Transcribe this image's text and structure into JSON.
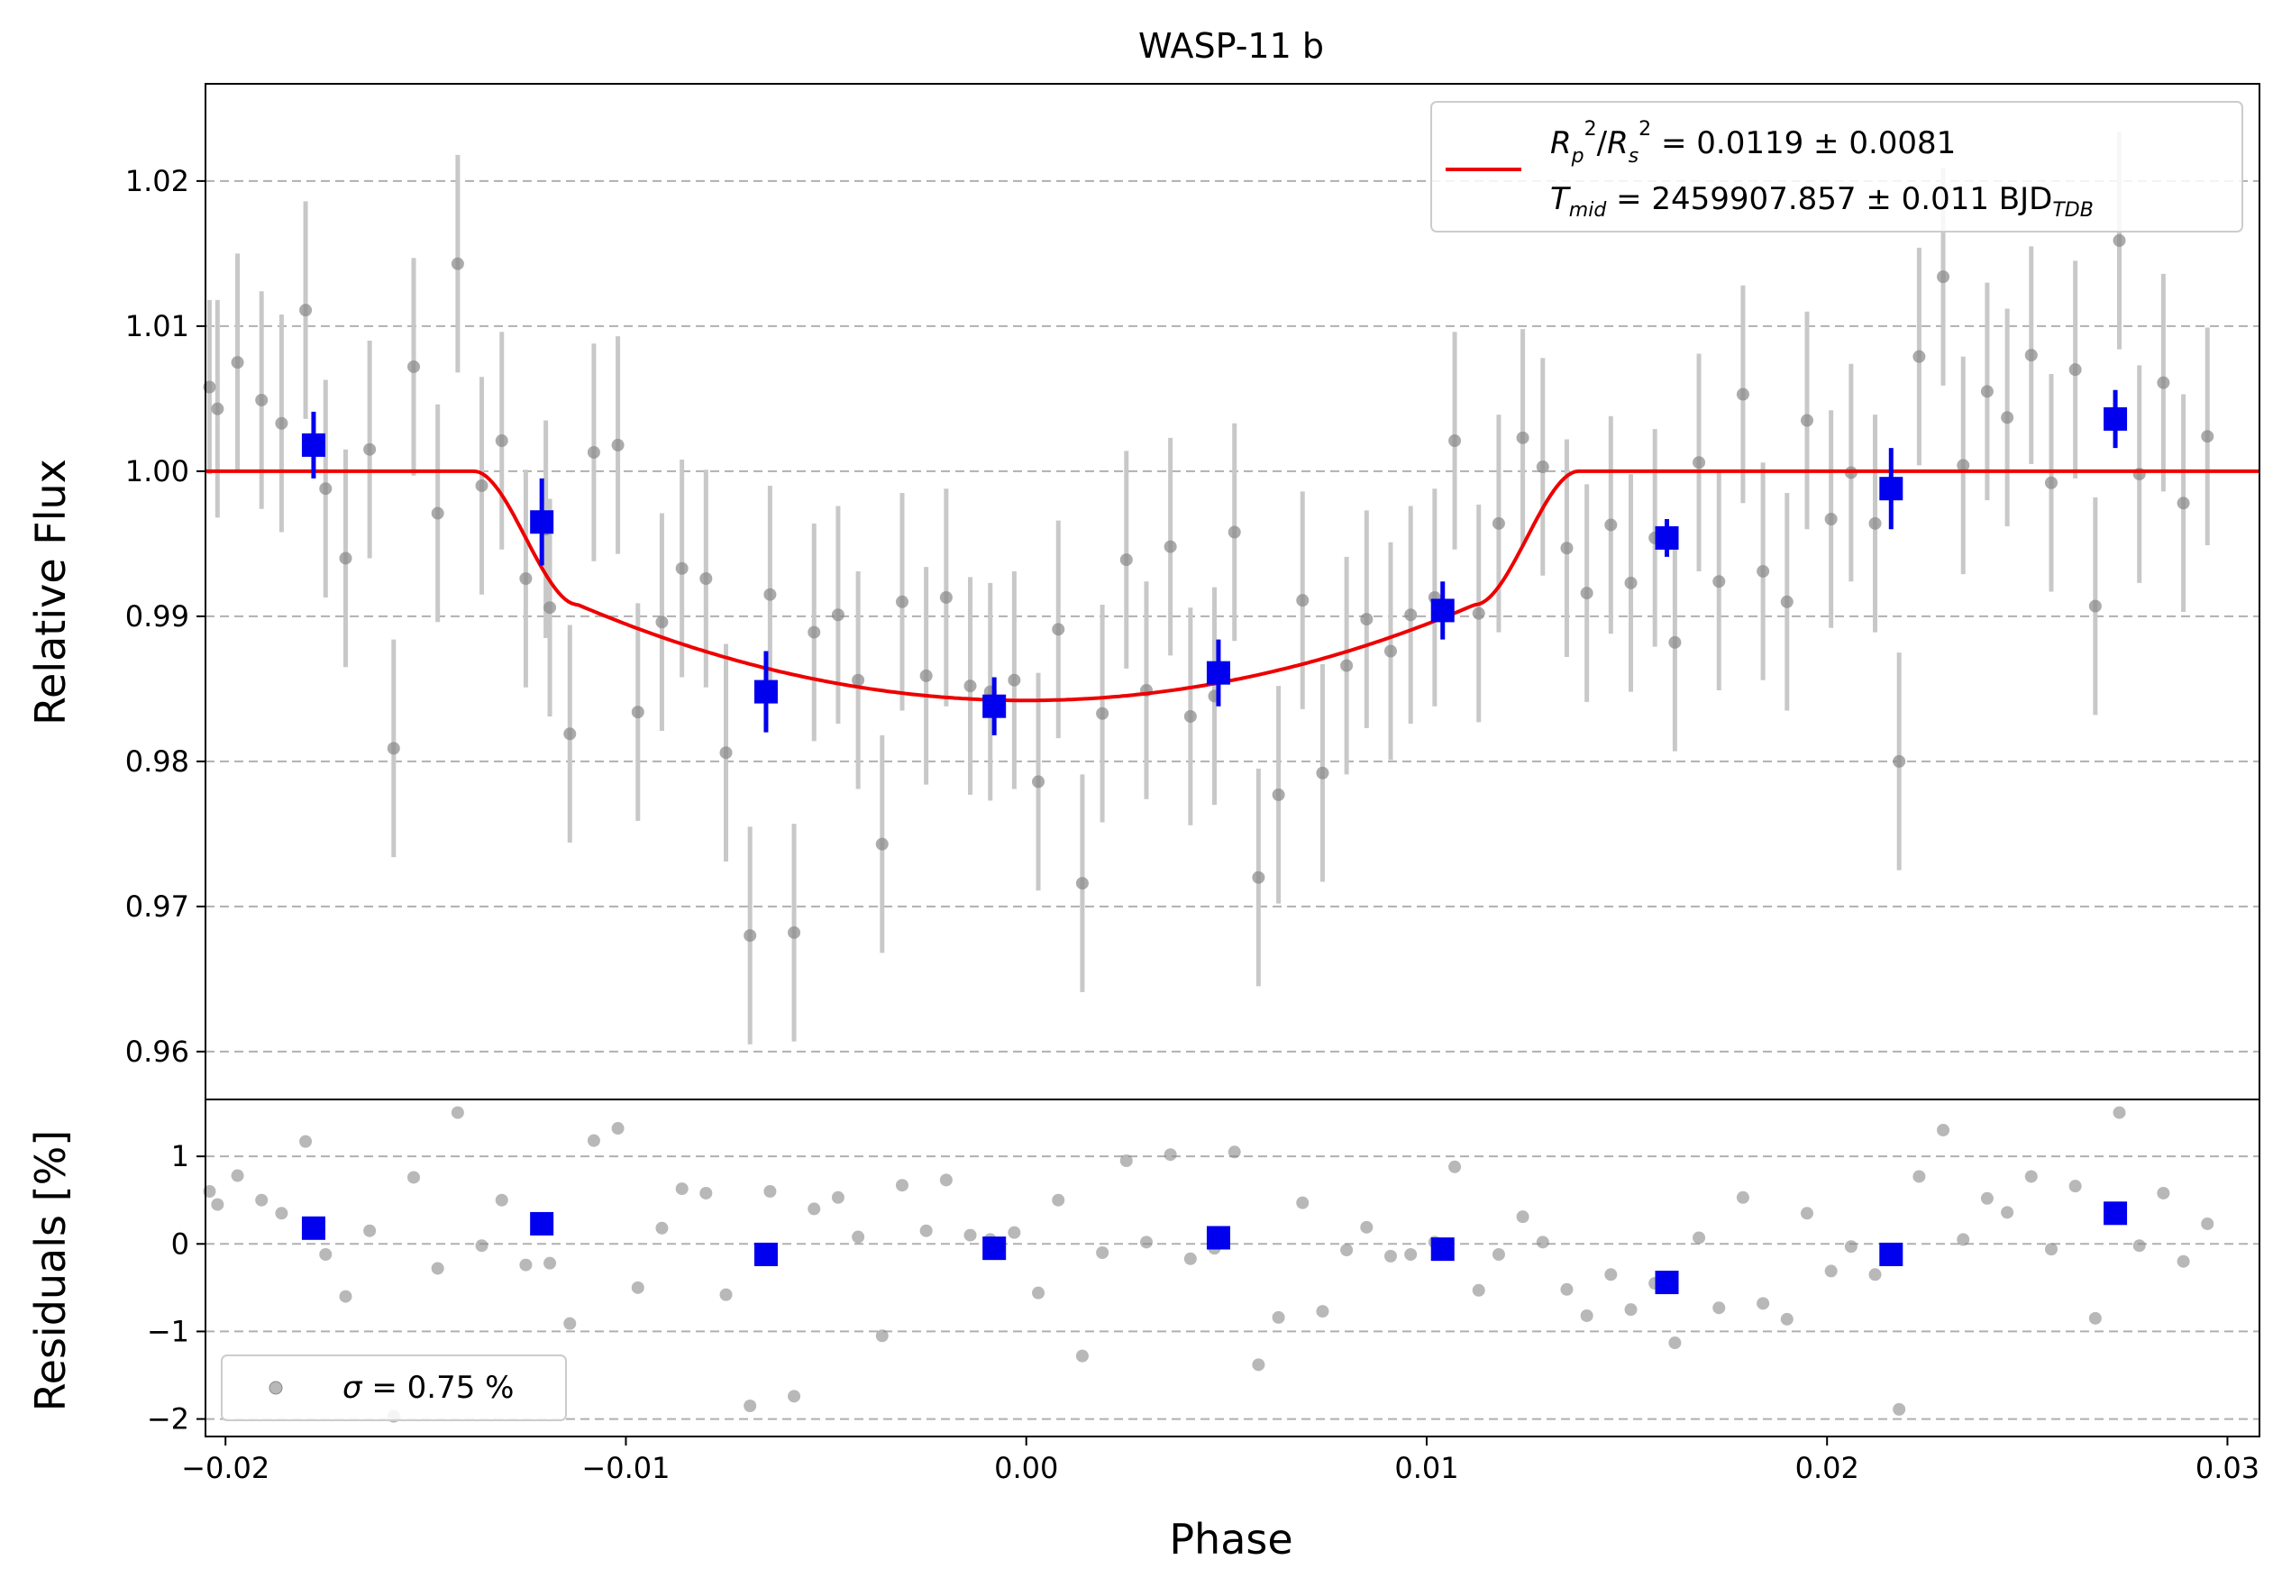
{
  "chart_data": [
    {
      "type": "scatter",
      "title": "WASP-11 b",
      "xlabel": "",
      "ylabel": "Relative Flux",
      "xlim": [
        -0.0205,
        0.0308
      ],
      "ylim": [
        0.9567,
        1.0267
      ],
      "y_ticks": [
        0.96,
        0.97,
        0.98,
        0.99,
        1.0,
        1.01,
        1.02
      ],
      "y_tick_labels": [
        "0.96",
        "0.97",
        "0.98",
        "0.99",
        "1.00",
        "1.01",
        "1.02"
      ],
      "grid": "horizontal dashed",
      "legend_placement": "top-right",
      "legend": {
        "line1": {
          "rp": "R",
          "rp_sub": "p",
          "sup1": "2",
          "slash": "/",
          "rs": "R",
          "rs_sub": "s",
          "sup2": "2",
          "value": " = 0.0119 ± 0.0081"
        },
        "line2": {
          "t": "T",
          "t_sub": "mid",
          "value": " = 2459907.857 ± 0.011 BJD",
          "unit_sub": "TDB"
        }
      },
      "colors": {
        "raw": "#888888",
        "raw_err": "#c8c8c8",
        "binned": "#0000ee",
        "model": "#ee0000",
        "grid": "#b0b0b0"
      },
      "model": {
        "depth": 0.0158,
        "t1": -0.0138,
        "t2": -0.0112,
        "t3": 0.0112,
        "t4": 0.0138,
        "baseline": 1.0
      },
      "raw_points": [
        [
          -0.0204,
          1.0058,
          0.006
        ],
        [
          -0.0202,
          1.0043,
          0.0075
        ],
        [
          -0.0197,
          1.0075,
          0.0075
        ],
        [
          -0.0191,
          1.0049,
          0.0075
        ],
        [
          -0.0186,
          1.0033,
          0.0075
        ],
        [
          -0.018,
          1.0111,
          0.0075
        ],
        [
          -0.0175,
          0.9988,
          0.0075
        ],
        [
          -0.017,
          0.994,
          0.0075
        ],
        [
          -0.0164,
          1.0015,
          0.0075
        ],
        [
          -0.0158,
          0.9809,
          0.0075
        ],
        [
          -0.0153,
          1.0072,
          0.0075
        ],
        [
          -0.0147,
          0.9971,
          0.0075
        ],
        [
          -0.0142,
          1.0143,
          0.0075
        ],
        [
          -0.0136,
          0.999,
          0.0075
        ],
        [
          -0.0131,
          1.0021,
          0.0075
        ],
        [
          -0.0125,
          0.9926,
          0.0075
        ],
        [
          -0.012,
          0.996,
          0.0075
        ],
        [
          -0.0119,
          0.9906,
          0.0075
        ],
        [
          -0.0114,
          0.9819,
          0.0075
        ],
        [
          -0.0108,
          1.0013,
          0.0075
        ],
        [
          -0.0102,
          1.0018,
          0.0075
        ],
        [
          -0.0097,
          0.9834,
          0.0075
        ],
        [
          -0.0091,
          0.9896,
          0.0075
        ],
        [
          -0.0086,
          0.9933,
          0.0075
        ],
        [
          -0.008,
          0.9926,
          0.0075
        ],
        [
          -0.0075,
          0.9806,
          0.0075
        ],
        [
          -0.0069,
          0.968,
          0.0075
        ],
        [
          -0.0064,
          0.9915,
          0.0075
        ],
        [
          -0.0058,
          0.9682,
          0.0075
        ],
        [
          -0.0053,
          0.9889,
          0.0075
        ],
        [
          -0.0047,
          0.9901,
          0.0075
        ],
        [
          -0.0042,
          0.9856,
          0.0075
        ],
        [
          -0.0036,
          0.9743,
          0.0075
        ],
        [
          -0.0031,
          0.991,
          0.0075
        ],
        [
          -0.0025,
          0.9859,
          0.0075
        ],
        [
          -0.002,
          0.9913,
          0.0075
        ],
        [
          -0.0014,
          0.9852,
          0.0075
        ],
        [
          -0.0009,
          0.9848,
          0.0075
        ],
        [
          -0.0003,
          0.9856,
          0.0075
        ],
        [
          0.0003,
          0.9786,
          0.0075
        ],
        [
          0.0008,
          0.9891,
          0.0075
        ],
        [
          0.0014,
          0.9716,
          0.0075
        ],
        [
          0.0019,
          0.9833,
          0.0075
        ],
        [
          0.0025,
          0.9939,
          0.0075
        ],
        [
          0.003,
          0.9849,
          0.0075
        ],
        [
          0.0036,
          0.9948,
          0.0075
        ],
        [
          0.0041,
          0.9831,
          0.0075
        ],
        [
          0.0047,
          0.9845,
          0.0075
        ],
        [
          0.0052,
          0.9958,
          0.0075
        ],
        [
          0.0058,
          0.972,
          0.0075
        ],
        [
          0.0063,
          0.9777,
          0.0075
        ],
        [
          0.0069,
          0.9911,
          0.0075
        ],
        [
          0.0074,
          0.9792,
          0.0075
        ],
        [
          0.008,
          0.9866,
          0.0075
        ],
        [
          0.0085,
          0.9898,
          0.0075
        ],
        [
          0.0091,
          0.9876,
          0.0075
        ],
        [
          0.0096,
          0.9901,
          0.0075
        ],
        [
          0.0102,
          0.9913,
          0.0075
        ],
        [
          0.0107,
          1.0021,
          0.0075
        ],
        [
          0.0113,
          0.9902,
          0.0075
        ],
        [
          0.0118,
          0.9964,
          0.0075
        ],
        [
          0.0124,
          1.0023,
          0.0075
        ],
        [
          0.0129,
          1.0003,
          0.0075
        ],
        [
          0.0135,
          0.9947,
          0.0075
        ],
        [
          0.014,
          0.9916,
          0.0075
        ],
        [
          0.0146,
          0.9963,
          0.0075
        ],
        [
          0.0151,
          0.9923,
          0.0075
        ],
        [
          0.0157,
          0.9954,
          0.0075
        ],
        [
          0.0162,
          0.9882,
          0.0075
        ],
        [
          0.0168,
          1.0006,
          0.0075
        ],
        [
          0.0173,
          0.9924,
          0.0075
        ],
        [
          0.0179,
          1.0053,
          0.0075
        ],
        [
          0.0184,
          0.9931,
          0.0075
        ],
        [
          0.019,
          0.991,
          0.0075
        ],
        [
          0.0195,
          1.0035,
          0.0075
        ],
        [
          0.0201,
          0.9967,
          0.0075
        ],
        [
          0.0206,
          0.9999,
          0.0075
        ],
        [
          0.0212,
          0.9964,
          0.0075
        ],
        [
          0.0218,
          0.98,
          0.0075
        ],
        [
          0.0223,
          1.0079,
          0.0075
        ],
        [
          0.0229,
          1.0134,
          0.0075
        ],
        [
          0.0234,
          1.0004,
          0.0075
        ],
        [
          0.024,
          1.0055,
          0.0075
        ],
        [
          0.0245,
          1.0037,
          0.0075
        ],
        [
          0.0251,
          1.008,
          0.0075
        ],
        [
          0.0256,
          0.9992,
          0.0075
        ],
        [
          0.0262,
          1.007,
          0.0075
        ],
        [
          0.0267,
          0.9907,
          0.0075
        ],
        [
          0.0273,
          1.0159,
          0.0075
        ],
        [
          0.0278,
          0.9998,
          0.0075
        ],
        [
          0.0284,
          1.0061,
          0.0075
        ],
        [
          0.0289,
          0.9978,
          0.0075
        ],
        [
          0.0295,
          1.0024,
          0.0075
        ]
      ],
      "binned_points": [
        [
          -0.0178,
          1.0018,
          0.0023
        ],
        [
          -0.0121,
          0.9965,
          0.003
        ],
        [
          -0.0065,
          0.9848,
          0.0028
        ],
        [
          -0.0008,
          0.9838,
          0.002
        ],
        [
          0.0048,
          0.9861,
          0.0023
        ],
        [
          0.0104,
          0.9904,
          0.002
        ],
        [
          0.016,
          0.9954,
          0.0013
        ],
        [
          0.0216,
          0.9988,
          0.0028
        ],
        [
          0.0272,
          1.0036,
          0.002
        ]
      ]
    },
    {
      "type": "scatter",
      "xlabel": "Phase",
      "ylabel": "Residuals [%]",
      "xlim": [
        -0.0205,
        0.0308
      ],
      "ylim": [
        -2.2,
        1.65
      ],
      "x_ticks": [
        -0.02,
        -0.01,
        0.0,
        0.01,
        0.02,
        0.03
      ],
      "x_tick_labels": [
        "−0.02",
        "−0.01",
        "0.00",
        "0.01",
        "0.02",
        "0.03"
      ],
      "y_ticks": [
        -2,
        -1,
        0,
        1
      ],
      "y_tick_labels": [
        "−2",
        "−1",
        "0",
        "1"
      ],
      "grid": "horizontal dashed",
      "legend_placement": "bottom-left",
      "legend": {
        "sigma": "σ",
        "value": " = 0.75 %"
      },
      "residual_points": [
        [
          -0.0204,
          0.6
        ],
        [
          -0.0202,
          0.45
        ],
        [
          -0.0197,
          0.78
        ],
        [
          -0.0191,
          0.5
        ],
        [
          -0.0186,
          0.35
        ],
        [
          -0.018,
          1.17
        ],
        [
          -0.0175,
          -0.12
        ],
        [
          -0.017,
          -0.6
        ],
        [
          -0.0164,
          0.15
        ],
        [
          -0.0158,
          -1.97
        ],
        [
          -0.0153,
          0.76
        ],
        [
          -0.0147,
          -0.28
        ],
        [
          -0.0142,
          1.5
        ],
        [
          -0.0136,
          -0.02
        ],
        [
          -0.0131,
          0.5
        ],
        [
          -0.0125,
          -0.24
        ],
        [
          -0.012,
          0.28
        ],
        [
          -0.0119,
          -0.22
        ],
        [
          -0.0114,
          -0.91
        ],
        [
          -0.0108,
          1.18
        ],
        [
          -0.0102,
          1.32
        ],
        [
          -0.0097,
          -0.5
        ],
        [
          -0.0091,
          0.18
        ],
        [
          -0.0086,
          0.63
        ],
        [
          -0.008,
          0.58
        ],
        [
          -0.0075,
          -0.58
        ],
        [
          -0.0069,
          -1.85
        ],
        [
          -0.0064,
          0.6
        ],
        [
          -0.0058,
          -1.74
        ],
        [
          -0.0053,
          0.4
        ],
        [
          -0.0047,
          0.53
        ],
        [
          -0.0042,
          0.08
        ],
        [
          -0.0036,
          -1.05
        ],
        [
          -0.0031,
          0.67
        ],
        [
          -0.0025,
          0.15
        ],
        [
          -0.002,
          0.73
        ],
        [
          -0.0014,
          0.1
        ],
        [
          -0.0009,
          0.05
        ],
        [
          -0.0003,
          0.13
        ],
        [
          0.0003,
          -0.56
        ],
        [
          0.0008,
          0.5
        ],
        [
          0.0014,
          -1.28
        ],
        [
          0.0019,
          -0.1
        ],
        [
          0.0025,
          0.95
        ],
        [
          0.003,
          0.02
        ],
        [
          0.0036,
          1.02
        ],
        [
          0.0041,
          -0.17
        ],
        [
          0.0047,
          -0.05
        ],
        [
          0.0052,
          1.05
        ],
        [
          0.0058,
          -1.38
        ],
        [
          0.0063,
          -0.84
        ],
        [
          0.0069,
          0.47
        ],
        [
          0.0074,
          -0.77
        ],
        [
          0.008,
          -0.07
        ],
        [
          0.0085,
          0.19
        ],
        [
          0.0091,
          -0.14
        ],
        [
          0.0096,
          -0.12
        ],
        [
          0.0102,
          0.02
        ],
        [
          0.0107,
          0.88
        ],
        [
          0.0113,
          -0.53
        ],
        [
          0.0118,
          -0.12
        ],
        [
          0.0124,
          0.31
        ],
        [
          0.0129,
          0.02
        ],
        [
          0.0135,
          -0.52
        ],
        [
          0.014,
          -0.82
        ],
        [
          0.0146,
          -0.35
        ],
        [
          0.0151,
          -0.75
        ],
        [
          0.0157,
          -0.45
        ],
        [
          0.0162,
          -1.13
        ],
        [
          0.0168,
          0.07
        ],
        [
          0.0173,
          -0.73
        ],
        [
          0.0179,
          0.53
        ],
        [
          0.0184,
          -0.68
        ],
        [
          0.019,
          -0.86
        ],
        [
          0.0195,
          0.35
        ],
        [
          0.0201,
          -0.31
        ],
        [
          0.0206,
          -0.03
        ],
        [
          0.0212,
          -0.35
        ],
        [
          0.0218,
          -1.89
        ],
        [
          0.0223,
          0.77
        ],
        [
          0.0229,
          1.3
        ],
        [
          0.0234,
          0.05
        ],
        [
          0.024,
          0.52
        ],
        [
          0.0245,
          0.36
        ],
        [
          0.0251,
          0.77
        ],
        [
          0.0256,
          -0.06
        ],
        [
          0.0262,
          0.66
        ],
        [
          0.0267,
          -0.85
        ],
        [
          0.0273,
          1.5
        ],
        [
          0.0278,
          -0.02
        ],
        [
          0.0284,
          0.58
        ],
        [
          0.0289,
          -0.2
        ],
        [
          0.0295,
          0.23
        ]
      ],
      "binned_residuals": [
        [
          -0.0178,
          0.18
        ],
        [
          -0.0121,
          0.23
        ],
        [
          -0.0065,
          -0.12
        ],
        [
          -0.0008,
          -0.05
        ],
        [
          0.0048,
          0.07
        ],
        [
          0.0104,
          -0.06
        ],
        [
          0.016,
          -0.44
        ],
        [
          0.0216,
          -0.12
        ],
        [
          0.0272,
          0.35
        ]
      ]
    }
  ]
}
